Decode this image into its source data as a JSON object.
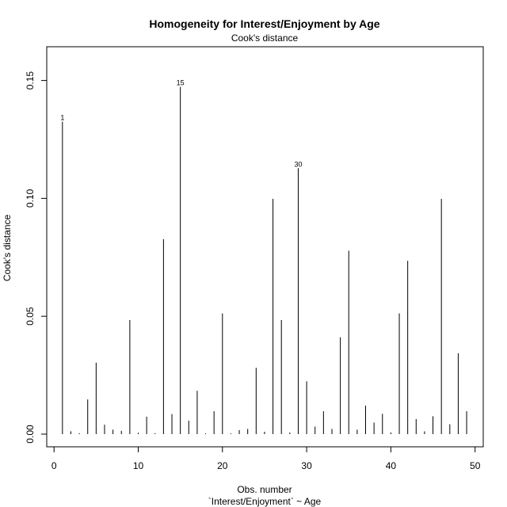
{
  "chart_data": {
    "type": "bar",
    "title": "Homogeneity for Interest/Enjoyment by Age",
    "subtitle": "Cook's distance",
    "xlabel": "Obs. number",
    "xlabel2": "`Interest/Enjoyment` ~ Age",
    "ylabel": "Cook's distance",
    "xlim": [
      0,
      50
    ],
    "ylim": [
      0,
      0.15
    ],
    "x_ticks": [
      0,
      10,
      20,
      30,
      40,
      50
    ],
    "x_tick_labels": [
      "0",
      "10",
      "20",
      "30",
      "40",
      "50"
    ],
    "y_ticks": [
      0.0,
      0.05,
      0.1,
      0.15
    ],
    "y_tick_labels": [
      "0.00",
      "0.05",
      "0.10",
      "0.15"
    ],
    "grid": false,
    "x": [
      1,
      2,
      3,
      4,
      5,
      6,
      7,
      8,
      9,
      10,
      11,
      12,
      13,
      14,
      15,
      16,
      17,
      18,
      19,
      20,
      21,
      22,
      23,
      24,
      25,
      26,
      27,
      28,
      29,
      30,
      31,
      32,
      33,
      34,
      35,
      36,
      37,
      38,
      39,
      40,
      41,
      42,
      43,
      44,
      45,
      46,
      47,
      48,
      49
    ],
    "values": [
      0.1325,
      0.0012,
      0.0004,
      0.0147,
      0.0303,
      0.004,
      0.0019,
      0.0014,
      0.0484,
      0.0006,
      0.0074,
      0.0004,
      0.0827,
      0.0085,
      0.1473,
      0.0057,
      0.0184,
      0.0003,
      0.0097,
      0.0512,
      0.0003,
      0.0017,
      0.0022,
      0.0281,
      0.001,
      0.0998,
      0.0484,
      0.0007,
      0.1128,
      0.0224,
      0.0032,
      0.0097,
      0.0022,
      0.0411,
      0.0778,
      0.0019,
      0.0121,
      0.0049,
      0.0086,
      0.0007,
      0.0512,
      0.0735,
      0.0064,
      0.0012,
      0.0076,
      0.0998,
      0.0042,
      0.0343,
      0.0097
    ],
    "annotations": [
      {
        "x": 1,
        "label": "1"
      },
      {
        "x": 15,
        "label": "15"
      },
      {
        "x": 29,
        "label": "30"
      }
    ]
  }
}
